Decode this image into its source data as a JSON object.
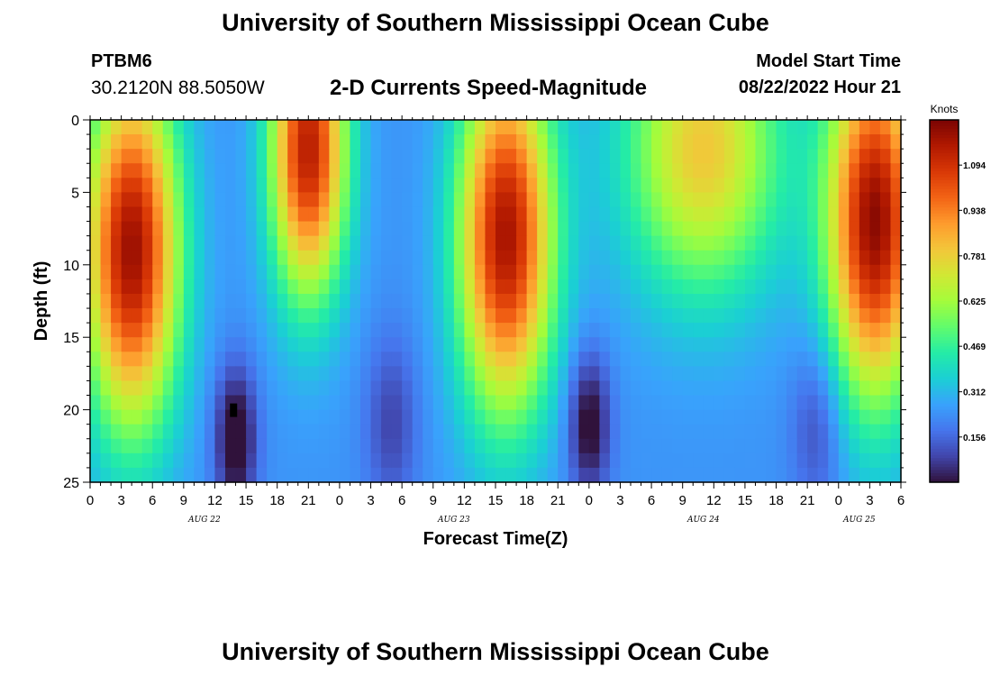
{
  "header": {
    "title": "University of Southern Mississippi Ocean Cube",
    "station": "PTBM6",
    "coordinates": "30.2120N  88.5050W",
    "subtitle": "2-D Currents Speed-Magnitude",
    "model_start_label": "Model Start Time",
    "model_start_value": "08/22/2022 Hour 21"
  },
  "footer": {
    "title": "University of Southern Mississippi Ocean Cube"
  },
  "colors": {
    "scale": [
      "#30123b",
      "#4145ab",
      "#4675ed",
      "#39a2fc",
      "#1bcfd4",
      "#24eca6",
      "#61fc6c",
      "#a4fc3b",
      "#d1e834",
      "#f3c63a",
      "#fe9b2d",
      "#f36315",
      "#d93806",
      "#b11901",
      "#7a0403"
    ]
  },
  "chart_data": {
    "type": "heatmap",
    "title": "2-D Currents Speed-Magnitude",
    "xlabel": "Forecast Time(Z)",
    "ylabel": "Depth (ft)",
    "x_range_hours": [
      0,
      78
    ],
    "y_range_ft": [
      0,
      25
    ],
    "y_ticks": [
      "0",
      "5",
      "10",
      "15",
      "20",
      "25"
    ],
    "x_ticks": [
      "0",
      "3",
      "6",
      "9",
      "12",
      "15",
      "18",
      "21",
      "0",
      "3",
      "6",
      "9",
      "12",
      "15",
      "18",
      "21",
      "0",
      "3",
      "6",
      "9",
      "12",
      "15",
      "18",
      "21",
      "0",
      "3",
      "6"
    ],
    "date_labels": [
      {
        "label": "AUG 22",
        "hour": 11
      },
      {
        "label": "AUG 23",
        "hour": 35
      },
      {
        "label": "AUG 24",
        "hour": 59
      },
      {
        "label": "AUG 25",
        "hour": 74
      }
    ],
    "colorbar": {
      "label": "Knots",
      "range": [
        0,
        1.25
      ],
      "ticks": [
        "0.156",
        "0.312",
        "0.469",
        "0.625",
        "0.781",
        "0.938",
        "1.094"
      ]
    },
    "features": [
      {
        "type": "blob",
        "hour": 4,
        "depth": 9,
        "width_h": 4.5,
        "depth_spread": 12,
        "peak": 1.2
      },
      {
        "type": "blob",
        "hour": 21,
        "depth": 2,
        "width_h": 3.6,
        "depth_spread": 10,
        "peak": 1.15
      },
      {
        "type": "blob",
        "hour": 40,
        "depth": 8,
        "width_h": 4.5,
        "depth_spread": 12,
        "peak": 1.18
      },
      {
        "type": "blob",
        "hour": 59,
        "depth": 2,
        "width_h": 7.5,
        "depth_spread": 10,
        "peak": 0.8
      },
      {
        "type": "blob",
        "hour": 75.5,
        "depth": 7,
        "width_h": 4.5,
        "depth_spread": 12,
        "peak": 1.22
      },
      {
        "type": "low",
        "hour": 14,
        "depth": 22,
        "width_h": 2,
        "depth_spread": 5,
        "depth_amount": 0.3
      },
      {
        "type": "low",
        "hour": 48,
        "depth": 21,
        "width_h": 2,
        "depth_spread": 5,
        "depth_amount": 0.28
      },
      {
        "type": "low",
        "hour": 29,
        "depth": 21,
        "width_h": 2.5,
        "depth_spread": 6,
        "depth_amount": 0.15
      },
      {
        "type": "low",
        "hour": 70,
        "depth": 21,
        "width_h": 2.5,
        "depth_spread": 6,
        "depth_amount": 0.15
      }
    ],
    "marker": {
      "hour": 13.8,
      "depth": 20
    }
  }
}
